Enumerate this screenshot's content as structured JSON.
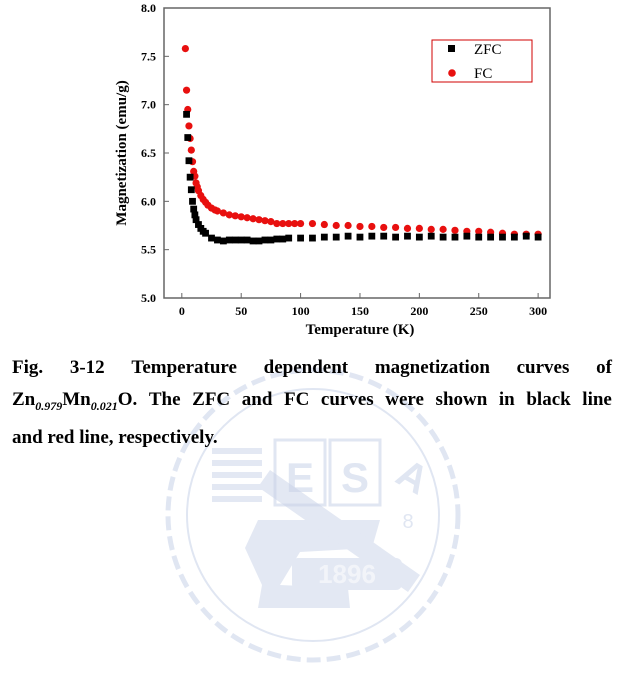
{
  "chart_data": {
    "type": "scatter",
    "xlabel": "Temperature (K)",
    "ylabel": "Magnetization (emu/g)",
    "xlim": [
      -15,
      310
    ],
    "ylim": [
      5.0,
      8.0
    ],
    "xticks": [
      "0",
      "50",
      "100",
      "150",
      "200",
      "250",
      "300"
    ],
    "yticks": [
      "5.0",
      "5.5",
      "6.0",
      "6.5",
      "7.0",
      "7.5",
      "8.0"
    ],
    "legend_position": "top-right",
    "series": [
      {
        "name": "ZFC",
        "color": "#000000",
        "marker": "square",
        "x": [
          4,
          5,
          6,
          7,
          8,
          9,
          10,
          11,
          12,
          14,
          16,
          18,
          20,
          25,
          30,
          35,
          40,
          45,
          50,
          55,
          60,
          65,
          70,
          75,
          80,
          85,
          90,
          100,
          110,
          120,
          130,
          140,
          150,
          160,
          170,
          180,
          190,
          200,
          210,
          220,
          230,
          240,
          250,
          260,
          270,
          280,
          290,
          300
        ],
        "y": [
          6.9,
          6.66,
          6.42,
          6.25,
          6.12,
          6.0,
          5.92,
          5.86,
          5.81,
          5.76,
          5.72,
          5.69,
          5.67,
          5.62,
          5.6,
          5.59,
          5.6,
          5.6,
          5.6,
          5.6,
          5.59,
          5.59,
          5.6,
          5.6,
          5.61,
          5.61,
          5.62,
          5.62,
          5.62,
          5.63,
          5.63,
          5.64,
          5.63,
          5.64,
          5.64,
          5.63,
          5.64,
          5.63,
          5.64,
          5.63,
          5.63,
          5.64,
          5.63,
          5.63,
          5.63,
          5.63,
          5.64,
          5.63
        ]
      },
      {
        "name": "FC",
        "color": "#e8100f",
        "marker": "circle",
        "x": [
          3,
          4,
          5,
          6,
          7,
          8,
          9,
          10,
          11,
          12,
          13,
          14,
          16,
          18,
          20,
          22,
          25,
          28,
          30,
          35,
          40,
          45,
          50,
          55,
          60,
          65,
          70,
          75,
          80,
          85,
          90,
          95,
          100,
          110,
          120,
          130,
          140,
          150,
          160,
          170,
          180,
          190,
          200,
          210,
          220,
          230,
          240,
          250,
          260,
          270,
          280,
          290,
          300
        ],
        "y": [
          7.58,
          7.15,
          6.95,
          6.78,
          6.65,
          6.53,
          6.41,
          6.31,
          6.26,
          6.19,
          6.15,
          6.11,
          6.06,
          6.02,
          5.99,
          5.96,
          5.93,
          5.91,
          5.9,
          5.88,
          5.86,
          5.85,
          5.84,
          5.83,
          5.82,
          5.81,
          5.8,
          5.79,
          5.77,
          5.77,
          5.77,
          5.77,
          5.77,
          5.77,
          5.76,
          5.75,
          5.75,
          5.74,
          5.74,
          5.73,
          5.73,
          5.72,
          5.72,
          5.71,
          5.71,
          5.7,
          5.69,
          5.69,
          5.68,
          5.67,
          5.66,
          5.66,
          5.66
        ]
      }
    ]
  },
  "caption": {
    "line1": [
      "Fig.",
      "3-12",
      "Temperature",
      "dependent",
      "magnetization",
      "curves",
      "of"
    ],
    "line2_zn": "Zn",
    "line2_zn_sub": "0.979",
    "line2_mn": "Mn",
    "line2_mn_sub": "0.021",
    "line2_rest": [
      "O.",
      "The",
      "ZFC",
      "and",
      "FC",
      "curves",
      "were",
      "shown",
      "in",
      "black",
      "line"
    ],
    "line3": "and red line, respectively."
  },
  "watermark": {
    "letters": [
      "E",
      "S",
      "A"
    ],
    "year": "1896",
    "extra": "8",
    "color": "#c8d2e8"
  }
}
